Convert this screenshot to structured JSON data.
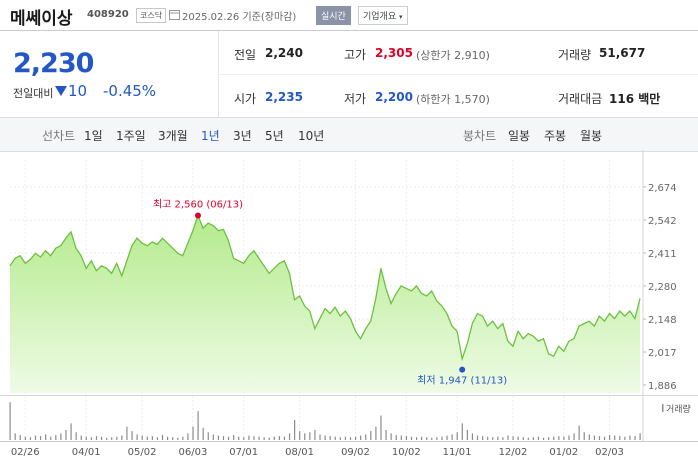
{
  "header": {
    "name": "메쎄이상",
    "code": "408920",
    "market": "코스닥",
    "date": "2025.02.26",
    "basis": "기준(장마감)",
    "buttons": [
      "실시간",
      "기업개요"
    ]
  },
  "quote": {
    "price": "2,230",
    "change_label": "전일대비",
    "change": "10",
    "change_rate": "-0.45%"
  },
  "stats": [
    [
      {
        "label": "전일",
        "value": "2,240"
      },
      {
        "label": "고가",
        "value": "2,305",
        "note": "(상한가 2,910)"
      },
      {
        "label": "거래량",
        "value": "51,677"
      }
    ],
    [
      {
        "label": "시가",
        "value": "2,235"
      },
      {
        "label": "저가",
        "value": "2,200",
        "note": "(하한가 1,570)"
      },
      {
        "label": "거래대금",
        "value": "116 백만"
      }
    ]
  ],
  "tabs": {
    "line_label": "선차트",
    "periods": [
      "1일",
      "1주일",
      "3개월",
      "1년",
      "3년",
      "5년",
      "10년"
    ],
    "candle_label": "봉차트",
    "candles": [
      "일봉",
      "주봉",
      "월봉"
    ]
  },
  "chart_data": {
    "type": "area",
    "color": "#6cc13d",
    "categories": [
      null,
      null,
      null,
      "02/26",
      null,
      null,
      null,
      null,
      null,
      null,
      null,
      null,
      null,
      null,
      null,
      "04/01",
      null,
      null,
      null,
      null,
      null,
      null,
      null,
      null,
      null,
      null,
      "05/02",
      null,
      null,
      null,
      null,
      null,
      null,
      null,
      null,
      null,
      "06/03",
      null,
      null,
      null,
      null,
      null,
      null,
      null,
      null,
      null,
      "07/01",
      null,
      null,
      null,
      null,
      null,
      null,
      null,
      null,
      null,
      null,
      "08/01",
      null,
      null,
      null,
      null,
      null,
      null,
      null,
      null,
      null,
      null,
      "09/02",
      null,
      null,
      null,
      null,
      null,
      null,
      null,
      null,
      null,
      "10/02",
      null,
      null,
      null,
      null,
      null,
      null,
      null,
      null,
      null,
      "11/01",
      null,
      null,
      null,
      null,
      null,
      null,
      null,
      null,
      null,
      null,
      "12/02",
      null,
      null,
      null,
      null,
      null,
      null,
      null,
      null,
      null,
      "01/02",
      null,
      null,
      null,
      null,
      null,
      null,
      null,
      null,
      "02/03",
      null,
      null,
      null,
      null,
      null,
      null
    ],
    "values": [
      2360,
      2390,
      2400,
      2370,
      2385,
      2410,
      2395,
      2420,
      2400,
      2430,
      2440,
      2470,
      2495,
      2430,
      2400,
      2350,
      2380,
      2340,
      2360,
      2350,
      2330,
      2370,
      2320,
      2380,
      2440,
      2470,
      2450,
      2440,
      2455,
      2445,
      2470,
      2450,
      2430,
      2410,
      2400,
      2450,
      2500,
      2560,
      2510,
      2530,
      2520,
      2500,
      2505,
      2460,
      2390,
      2380,
      2370,
      2400,
      2420,
      2390,
      2360,
      2330,
      2350,
      2370,
      2380,
      2330,
      2225,
      2240,
      2200,
      2180,
      2110,
      2150,
      2190,
      2170,
      2195,
      2160,
      2180,
      2150,
      2100,
      2070,
      2110,
      2140,
      2230,
      2350,
      2270,
      2210,
      2250,
      2280,
      2270,
      2260,
      2280,
      2250,
      2240,
      2260,
      2220,
      2200,
      2170,
      2120,
      2100,
      1990,
      2050,
      2130,
      2170,
      2160,
      2120,
      2140,
      2110,
      2130,
      2060,
      2040,
      2100,
      2070,
      2090,
      2080,
      2060,
      2070,
      2010,
      2000,
      2040,
      2020,
      2060,
      2070,
      2120,
      2130,
      2140,
      2120,
      2160,
      2140,
      2170,
      2150,
      2180,
      2160,
      2180,
      2150,
      2230
    ],
    "ylim": [
      1854,
      2781
    ],
    "yticks": [
      {
        "value": 1886,
        "label": "1,886"
      },
      {
        "value": 2017,
        "label": "2,017"
      },
      {
        "value": 2148,
        "label": "2,148"
      },
      {
        "value": 2280,
        "label": "2,280"
      },
      {
        "value": 2411,
        "label": "2,411"
      },
      {
        "value": 2542,
        "label": "2,542"
      },
      {
        "value": 2674,
        "label": "2,674"
      }
    ],
    "annotations": [
      {
        "text": "최고 2,560 (06/13)",
        "value": 2560,
        "color": "#e0002a"
      },
      {
        "text": "최저 1,947 (11/13)",
        "value": 1947,
        "color": "#2457c5"
      }
    ],
    "volume": {
      "name": "거래량",
      "color": "#8a8a96",
      "ylim": [
        0,
        360000
      ],
      "values": [
        340000,
        60000,
        45000,
        30000,
        25000,
        40000,
        35000,
        50000,
        30000,
        45000,
        60000,
        90000,
        150000,
        70000,
        40000,
        30000,
        25000,
        35000,
        30000,
        20000,
        25000,
        30000,
        40000,
        120000,
        80000,
        50000,
        40000,
        30000,
        35000,
        25000,
        45000,
        30000,
        25000,
        20000,
        30000,
        60000,
        120000,
        260000,
        110000,
        70000,
        50000,
        40000,
        35000,
        30000,
        45000,
        30000,
        25000,
        40000,
        35000,
        30000,
        25000,
        20000,
        30000,
        35000,
        30000,
        60000,
        180000,
        80000,
        60000,
        70000,
        90000,
        50000,
        40000,
        35000,
        30000,
        25000,
        30000,
        25000,
        30000,
        40000,
        50000,
        80000,
        120000,
        220000,
        90000,
        60000,
        45000,
        40000,
        35000,
        30000,
        25000,
        30000,
        25000,
        20000,
        25000,
        30000,
        40000,
        50000,
        70000,
        150000,
        90000,
        60000,
        40000,
        35000,
        30000,
        25000,
        30000,
        25000,
        40000,
        35000,
        30000,
        25000,
        20000,
        25000,
        30000,
        20000,
        25000,
        30000,
        35000,
        30000,
        40000,
        60000,
        130000,
        70000,
        50000,
        40000,
        35000,
        30000,
        45000,
        40000,
        35000,
        30000,
        40000,
        35000,
        60000
      ]
    }
  }
}
